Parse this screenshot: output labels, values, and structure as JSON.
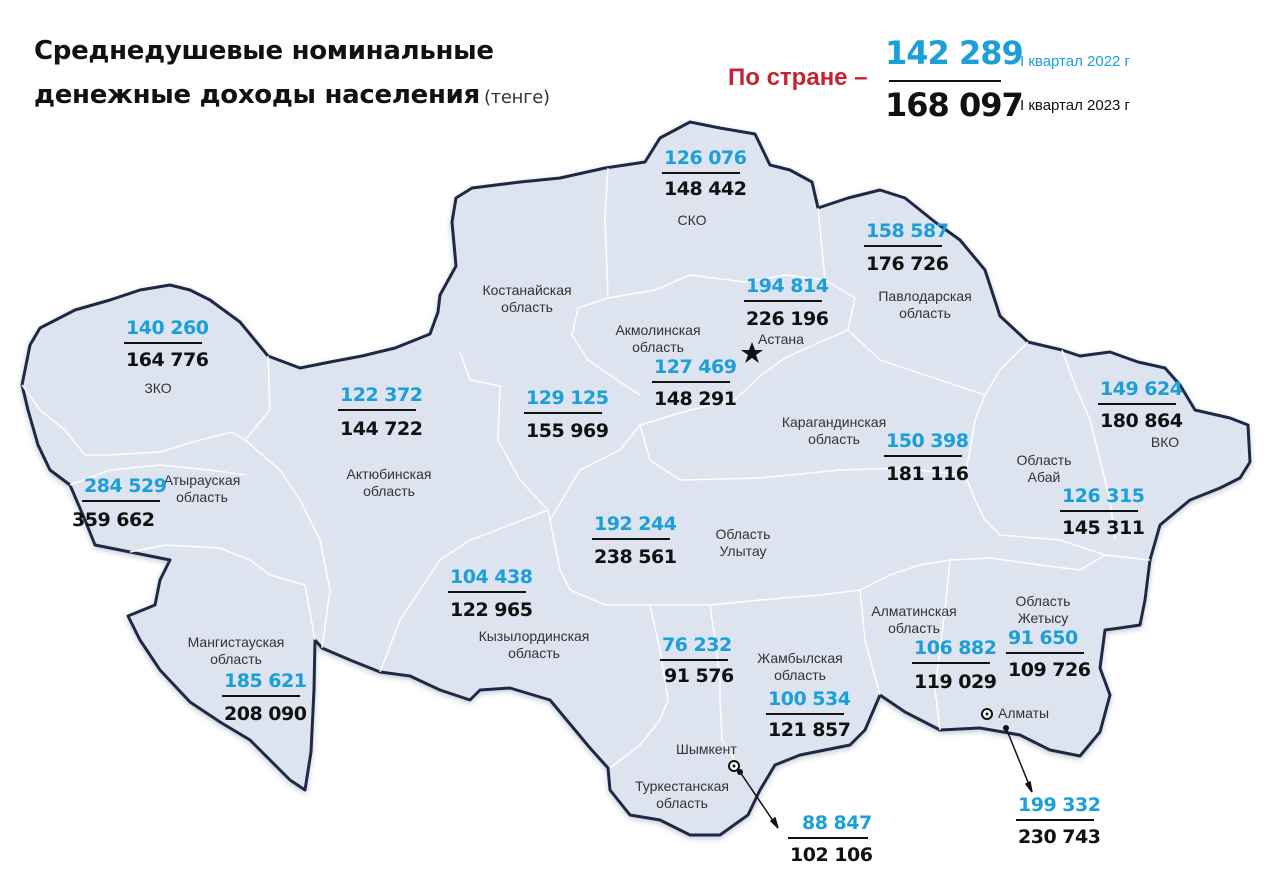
{
  "title": {
    "line1": "Среднедушевые номинальные",
    "line2": "денежные доходы населения",
    "unit": "(тенге)"
  },
  "country": {
    "label": "По стране –",
    "value_2022": "142 289",
    "value_2023": "168 097",
    "period_2022": "I квартал 2022 г",
    "period_2023": "I квартал 2023 г"
  },
  "colors": {
    "map_fill": "#dde3ef",
    "map_border": "#1f2a44",
    "value_2022": "#1a9fd8",
    "value_2023": "#111111",
    "country_label": "#c62330"
  },
  "regions": [
    {
      "id": "sko",
      "name": "СКО",
      "v2022": "126 076",
      "v2023": "148 442"
    },
    {
      "id": "pavlodar",
      "name": "Павлодарская\nобласть",
      "v2022": "158 587",
      "v2023": "176 726"
    },
    {
      "id": "astana",
      "name": "",
      "v2022": "194 814",
      "v2023": "226 196"
    },
    {
      "id": "akmola",
      "name": "Акмолинская\nобласть",
      "v2022": "127 469",
      "v2023": "148 291"
    },
    {
      "id": "kostanay",
      "name": "Костанайская\nобласть",
      "v2022": "129 125",
      "v2023": "155 969"
    },
    {
      "id": "zko",
      "name": "ЗКО",
      "v2022": "140 260",
      "v2023": "164 776"
    },
    {
      "id": "aktobe",
      "name": "Актюбинская\nобласть",
      "v2022": "122 372",
      "v2023": "144 722"
    },
    {
      "id": "atyrau",
      "name": "Атырауская\nобласть",
      "v2022": "284 529",
      "v2023": "359 662"
    },
    {
      "id": "mangystau",
      "name": "Мангистауская\nобласть",
      "v2022": "185 621",
      "v2023": "208 090"
    },
    {
      "id": "kyzylorda",
      "name": "Кызылординская\nобласть",
      "v2022": "104 438",
      "v2023": "122 965"
    },
    {
      "id": "ulytau",
      "name": "Область\nУлытау",
      "v2022": "192 244",
      "v2023": "238 561"
    },
    {
      "id": "karaganda",
      "name": "Карагандинская\nобласть",
      "v2022": "150 398",
      "v2023": "181 116"
    },
    {
      "id": "vko",
      "name": "ВКО",
      "v2022": "149 624",
      "v2023": "180 864"
    },
    {
      "id": "abay",
      "name": "Область\nАбай",
      "v2022": "126 315",
      "v2023": "145 311"
    },
    {
      "id": "zhetysu",
      "name": "Область\nЖетысу",
      "v2022": "91 650",
      "v2023": "109 726"
    },
    {
      "id": "almaty_obl",
      "name": "Алматинская\nобласть",
      "v2022": "106 882",
      "v2023": "119 029"
    },
    {
      "id": "zhambyl",
      "name": "Жамбылская\nобласть",
      "v2022": "100 534",
      "v2023": "121 857"
    },
    {
      "id": "turkestan",
      "name": "Туркестанская\nобласть",
      "v2022": "76 232",
      "v2023": "91 576"
    },
    {
      "id": "shymkent",
      "name": "",
      "v2022": "88 847",
      "v2023": "102 106"
    },
    {
      "id": "almaty_city",
      "name": "",
      "v2022": "199 332",
      "v2023": "230 743"
    }
  ],
  "cities": {
    "astana": "Астана",
    "shymkent": "Шымкент",
    "almaty": "Алматы"
  }
}
